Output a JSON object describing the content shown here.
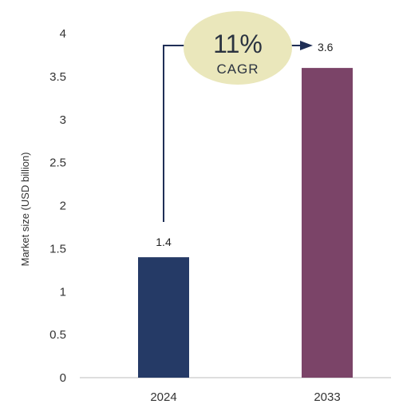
{
  "chart_data": {
    "type": "bar",
    "categories": [
      "2024",
      "2033"
    ],
    "values": [
      1.4,
      3.6
    ],
    "data_labels": [
      "1.4",
      "3.6"
    ],
    "title": "",
    "xlabel": "",
    "ylabel": "Market size (USD billion)",
    "ylim": [
      0,
      4
    ],
    "yticks": [
      "0",
      "0.5",
      "1",
      "1.5",
      "2",
      "2.5",
      "3",
      "3.5",
      "4"
    ],
    "grid": false,
    "bar_colors": [
      "#253a66",
      "#7b4468"
    ],
    "annotation": {
      "value": "11%",
      "label": "CAGR",
      "bubble_color": "#eae7bb",
      "arrow_color": "#1f2f56"
    }
  }
}
